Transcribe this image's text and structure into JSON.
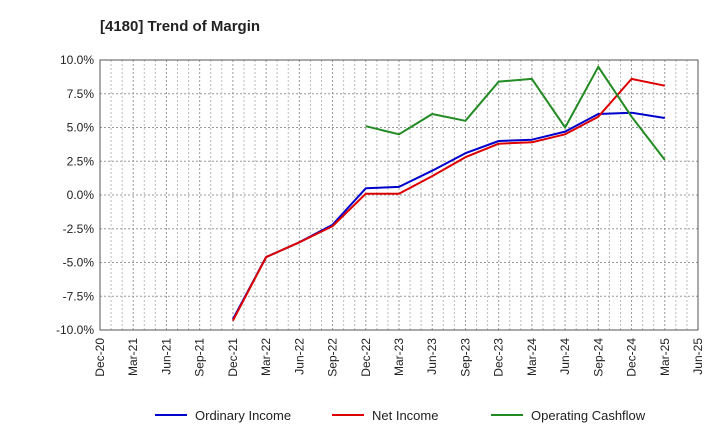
{
  "chart_data": {
    "type": "line",
    "title": "[4180]  Trend of Margin",
    "xlabel": "",
    "ylabel": "",
    "ylim": [
      -10,
      10
    ],
    "yticks": [
      10,
      7.5,
      5,
      2.5,
      0,
      -2.5,
      -5,
      -7.5,
      -10
    ],
    "ytick_labels": [
      "10.0%",
      "7.5%",
      "5.0%",
      "2.5%",
      "0.0%",
      "-2.5%",
      "-5.0%",
      "-7.5%",
      "-10.0%"
    ],
    "x_tick_labels": [
      "Dec-20",
      "Mar-21",
      "Jun-21",
      "Sep-21",
      "Dec-21",
      "Mar-22",
      "Jun-22",
      "Sep-22",
      "Dec-22",
      "Mar-23",
      "Jun-23",
      "Sep-23",
      "Dec-23",
      "Mar-24",
      "Jun-24",
      "Sep-24",
      "Dec-24",
      "Mar-25",
      "Jun-25"
    ],
    "grid": true,
    "legend_position": "bottom",
    "series": [
      {
        "name": "Ordinary Income",
        "color": "#0000cc",
        "values": [
          null,
          null,
          null,
          null,
          -9.2,
          -4.6,
          -3.5,
          -2.2,
          0.5,
          0.6,
          1.8,
          3.1,
          4.0,
          4.1,
          4.7,
          6.0,
          6.1,
          5.7,
          null
        ]
      },
      {
        "name": "Net Income",
        "color": "#dd0000",
        "values": [
          null,
          null,
          null,
          null,
          -9.3,
          -4.6,
          -3.5,
          -2.3,
          0.1,
          0.1,
          1.4,
          2.8,
          3.8,
          3.9,
          4.5,
          5.8,
          8.6,
          8.1,
          null
        ]
      },
      {
        "name": "Operating Cashflow",
        "color": "#228b22",
        "values": [
          null,
          null,
          null,
          null,
          null,
          null,
          null,
          null,
          5.1,
          4.5,
          6.0,
          5.5,
          8.4,
          8.6,
          5.0,
          9.5,
          5.8,
          2.6,
          null
        ]
      }
    ]
  }
}
